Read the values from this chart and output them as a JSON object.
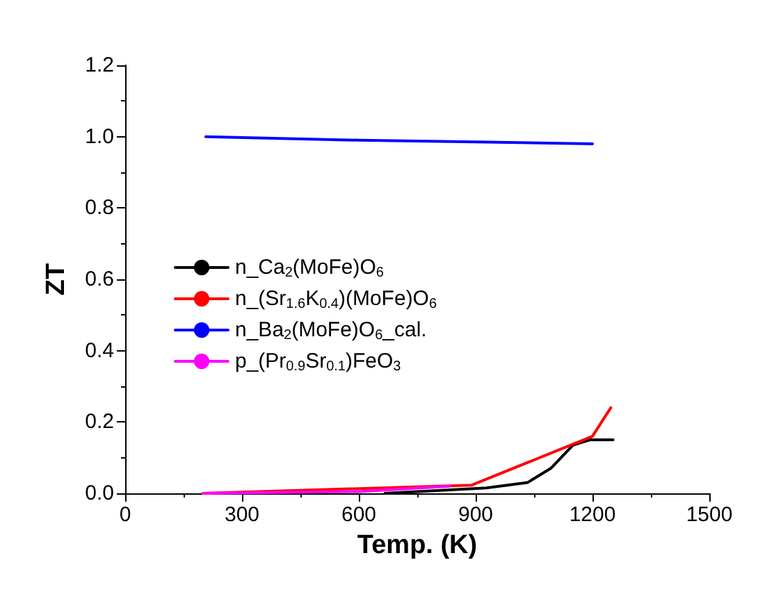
{
  "chart_data": {
    "type": "line",
    "xlabel": "Temp. (K)",
    "ylabel": "ZT",
    "xlim": [
      0,
      1500
    ],
    "xticks": [
      0,
      300,
      600,
      900,
      1200,
      1500
    ],
    "ylim": [
      0,
      1.2
    ],
    "yticks": [
      {
        "value": 0,
        "label": "0.0"
      },
      {
        "value": 0.2,
        "label": "0.2"
      },
      {
        "value": 0.4,
        "label": "0.4"
      },
      {
        "value": 0.6,
        "label": "0.6"
      },
      {
        "value": 0.8,
        "label": "0.8"
      },
      {
        "value": 1,
        "label": "1.0"
      },
      {
        "value": 1.2,
        "label": "1.2"
      }
    ],
    "grid": false,
    "legend": "center left",
    "marker": "none",
    "line_style": "solid",
    "series": [
      {
        "name": "n_Ca$_{2}$(MoFe)O$_{6}$",
        "color": "#000000",
        "x": [
          667,
          927,
          1033,
          1093,
          1150,
          1193,
          1253
        ],
        "values": [
          0,
          0.015,
          0.03,
          0.07,
          0.135,
          0.15,
          0.15
        ]
      },
      {
        "name": "n_(Sr$_{1.6}$K$_{0.4}$)(MoFe)O$_{6}$",
        "color": "#ff0000",
        "x": [
          200,
          890,
          1200,
          1247
        ],
        "values": [
          0,
          0.023,
          0.16,
          0.24
        ]
      },
      {
        "name": "n_Ba$_{2}$(MoFe)O$_{6}$_cal.",
        "color": "#0000ff",
        "x": [
          207,
          600,
          900,
          1200
        ],
        "values": [
          1.0,
          0.99,
          0.985,
          0.98
        ]
      },
      {
        "name": "p_(Pr$_{0.9}$Sr$_{0.1}$)FeO$_{3}$",
        "color": "#ff00ff",
        "x": [
          200,
          600,
          833
        ],
        "values": [
          0,
          0.005,
          0.02
        ]
      }
    ]
  }
}
